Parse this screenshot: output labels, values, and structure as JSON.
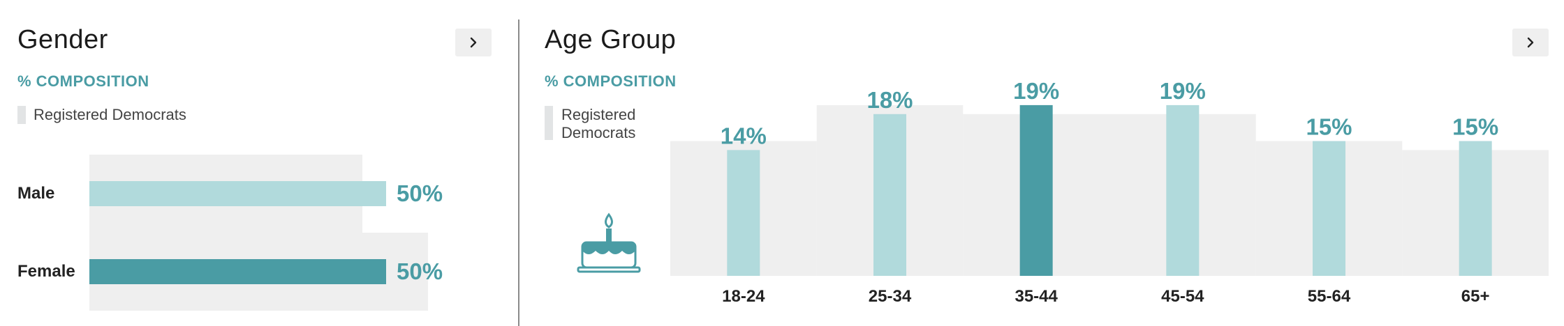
{
  "colors": {
    "accent": "#4a9ca4",
    "light_bar": "#b1dadc",
    "benchmark": "#efefef",
    "legend_swatch": "#e2e4e5"
  },
  "gender_panel": {
    "title": "Gender",
    "subtitle": "% COMPOSITION",
    "legend_label": "Registered Democrats",
    "next_icon": "chevron-right-icon"
  },
  "age_panel": {
    "title": "Age Group",
    "subtitle": "% COMPOSITION",
    "legend_label_line1": "Registered",
    "legend_label_line2": "Democrats",
    "next_icon": "chevron-right-icon",
    "decor_icon": "birthday-cake-icon"
  },
  "chart_data": [
    {
      "type": "bar",
      "orientation": "horizontal",
      "categories": [
        "Male",
        "Female"
      ],
      "values": [
        50,
        50
      ],
      "value_labels": [
        "50%",
        "50%"
      ],
      "benchmark_values": [
        46,
        57
      ],
      "highlight": [
        false,
        true
      ],
      "xlim": [
        0,
        100
      ],
      "title": "Gender",
      "subtitle": "% COMPOSITION",
      "legend": [
        "Registered Democrats"
      ]
    },
    {
      "type": "bar",
      "orientation": "vertical",
      "categories": [
        "18-24",
        "25-34",
        "35-44",
        "45-54",
        "55-64",
        "65+"
      ],
      "values": [
        14,
        18,
        19,
        19,
        15,
        15
      ],
      "value_labels": [
        "14%",
        "18%",
        "19%",
        "19%",
        "15%",
        "15%"
      ],
      "benchmark_values": [
        15,
        19,
        18,
        18,
        15,
        14
      ],
      "highlight": [
        false,
        false,
        true,
        false,
        false,
        false
      ],
      "ylim": [
        0,
        22
      ],
      "title": "Age Group",
      "subtitle": "% COMPOSITION",
      "legend": [
        "Registered Democrats"
      ]
    }
  ]
}
